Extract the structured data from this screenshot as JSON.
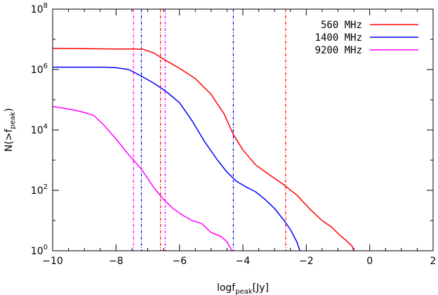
{
  "chart_data": {
    "type": "line",
    "xlabel": "logf",
    "xlabel_sub": "peak",
    "xlabel_unit": "[Jy]",
    "ylabel": "N(>f",
    "ylabel_sub": "peak",
    "ylabel_close": ")",
    "yscale": "log",
    "xlim": [
      -10,
      2
    ],
    "ylim": [
      1,
      100000000
    ],
    "x_ticks": [
      {
        "value": -10,
        "label": "−10"
      },
      {
        "value": -8,
        "label": "−8"
      },
      {
        "value": -6,
        "label": "−6"
      },
      {
        "value": -4,
        "label": "−4"
      },
      {
        "value": -2,
        "label": "−2"
      },
      {
        "value": 0,
        "label": "0"
      },
      {
        "value": 2,
        "label": "2"
      }
    ],
    "y_ticks": [
      {
        "value": 1,
        "base": "10",
        "exp": "0"
      },
      {
        "value": 100,
        "base": "10",
        "exp": "2"
      },
      {
        "value": 10000,
        "base": "10",
        "exp": "4"
      },
      {
        "value": 1000000,
        "base": "10",
        "exp": "6"
      },
      {
        "value": 100000000,
        "base": "10",
        "exp": "8"
      }
    ],
    "grid": false,
    "legend_position": "top-right",
    "series": [
      {
        "name": "560 MHz",
        "color": "#ff0000",
        "x": [
          -10,
          -9.0,
          -8.0,
          -7.5,
          -7.15,
          -6.8,
          -6.5,
          -6.0,
          -5.5,
          -5.0,
          -4.6,
          -4.3,
          -4.0,
          -3.6,
          -3.2,
          -2.7,
          -2.3,
          -1.9,
          -1.5,
          -1.2,
          -0.9,
          -0.7,
          -0.55,
          -0.5
        ],
        "y": [
          5000000,
          4900000,
          4800000,
          4800000,
          4700000,
          3500000,
          2200000,
          1100000,
          500000,
          150000,
          35000,
          7000,
          2200,
          700,
          350,
          150,
          70,
          25,
          10,
          6,
          3,
          2,
          1.4,
          1
        ]
      },
      {
        "name": "1400 MHz",
        "color": "#0000ff",
        "x": [
          -10,
          -9.0,
          -8.4,
          -8.0,
          -7.6,
          -7.2,
          -6.8,
          -6.4,
          -6.0,
          -5.6,
          -5.2,
          -4.8,
          -4.5,
          -4.2,
          -3.9,
          -3.6,
          -3.3,
          -3.0,
          -2.7,
          -2.5,
          -2.3,
          -2.2
        ],
        "y": [
          1200000,
          1200000,
          1200000,
          1150000,
          1000000,
          600000,
          350000,
          180000,
          80000,
          20000,
          4000,
          1000,
          400,
          200,
          130,
          90,
          50,
          25,
          10,
          5,
          2,
          1
        ]
      },
      {
        "name": "9200 MHz",
        "color": "#ff00ff",
        "x": [
          -10,
          -9.3,
          -9.0,
          -8.7,
          -8.4,
          -8.0,
          -7.6,
          -7.2,
          -6.8,
          -6.5,
          -6.2,
          -5.9,
          -5.6,
          -5.3,
          -5.0,
          -4.7,
          -4.5,
          -4.35
        ],
        "y": [
          60000,
          45000,
          38000,
          30000,
          15000,
          5000,
          1500,
          500,
          120,
          50,
          25,
          15,
          10,
          8,
          4,
          3,
          2,
          1
        ]
      }
    ],
    "vlines": [
      {
        "series": "560 MHz",
        "x": -6.6,
        "color": "#ff0000"
      },
      {
        "series": "560 MHz",
        "x": -2.65,
        "color": "#ff0000"
      },
      {
        "series": "1400 MHz",
        "x": -7.2,
        "color": "#0000ff"
      },
      {
        "series": "1400 MHz",
        "x": -4.3,
        "color": "#0000ff"
      },
      {
        "series": "9200 MHz",
        "x": -7.45,
        "color": "#ff00ff"
      },
      {
        "series": "9200 MHz",
        "x": -6.45,
        "color": "#ff00ff"
      }
    ]
  }
}
